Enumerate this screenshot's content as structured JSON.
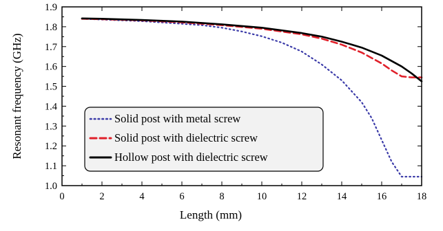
{
  "chart_data": {
    "type": "line",
    "title": "",
    "xlabel": "Length (mm)",
    "ylabel": "Resonant frequency (GHz)",
    "xlim": [
      0,
      18
    ],
    "ylim": [
      1.0,
      1.9
    ],
    "x_ticks": [
      "0",
      "2",
      "4",
      "6",
      "8",
      "10",
      "12",
      "14",
      "16",
      "18"
    ],
    "y_ticks": [
      "1.0",
      "1.1",
      "1.2",
      "1.3",
      "1.4",
      "1.5",
      "1.6",
      "1.7",
      "1.8",
      "1.9"
    ],
    "grid": false,
    "legend_position": "bottom-left",
    "series": [
      {
        "name": "Solid post with metal screw",
        "color": "#3a3aa8",
        "style": "dotted",
        "x": [
          1,
          2,
          4,
          6,
          7,
          8,
          9,
          10,
          11,
          12,
          13,
          14,
          15,
          15.5,
          16,
          16.5,
          17,
          17.5,
          18
        ],
        "y": [
          1.84,
          1.836,
          1.828,
          1.815,
          1.808,
          1.795,
          1.776,
          1.752,
          1.72,
          1.675,
          1.61,
          1.53,
          1.42,
          1.34,
          1.23,
          1.12,
          1.045,
          1.045,
          1.045
        ]
      },
      {
        "name": "Solid post with dielectric screw",
        "color": "#e0202a",
        "style": "dashed",
        "x": [
          1,
          2,
          4,
          6,
          8,
          10,
          12,
          13,
          14,
          15,
          16,
          16.5,
          17,
          17.5,
          18
        ],
        "y": [
          1.84,
          1.838,
          1.832,
          1.822,
          1.808,
          1.79,
          1.762,
          1.74,
          1.71,
          1.67,
          1.615,
          1.58,
          1.55,
          1.545,
          1.545
        ]
      },
      {
        "name": "Hollow post with dielectric screw",
        "color": "#000000",
        "style": "solid",
        "x": [
          1,
          2,
          4,
          6,
          8,
          10,
          12,
          13,
          14,
          15,
          16,
          17,
          17.5,
          18
        ],
        "y": [
          1.842,
          1.84,
          1.834,
          1.826,
          1.812,
          1.795,
          1.768,
          1.75,
          1.725,
          1.695,
          1.655,
          1.6,
          1.565,
          1.525
        ]
      }
    ]
  }
}
